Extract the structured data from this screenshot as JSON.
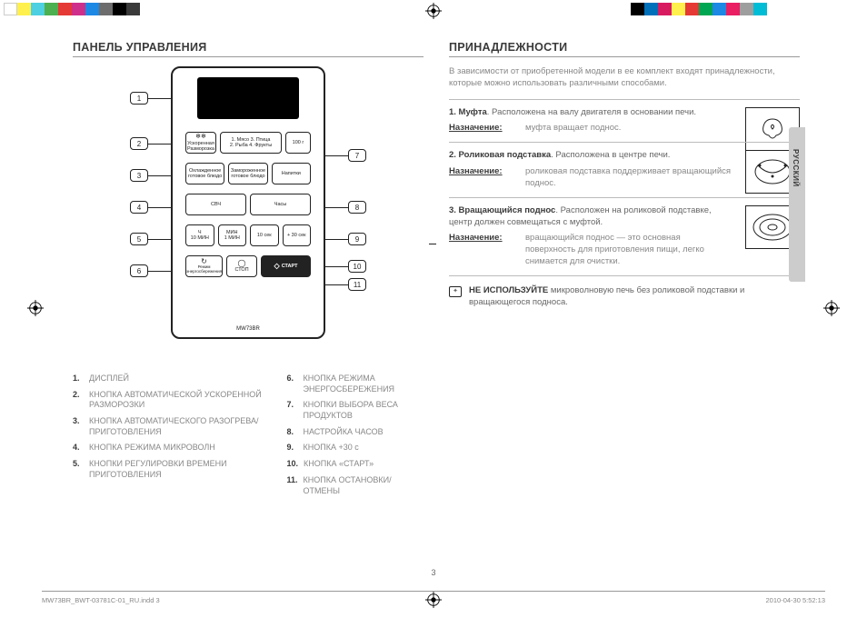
{
  "colorBar1": [
    "#ffffff",
    "#fff04d",
    "#4dd0e1",
    "#4caf50",
    "#e53935",
    "#ce2f8a",
    "#1e88e5",
    "#6d6d6d",
    "#000000",
    "#3a3a3a"
  ],
  "colorBar2": [
    "#000000",
    "#0070ba",
    "#d81b60",
    "#fff04d",
    "#e53935",
    "#00a651",
    "#1e88e5",
    "#e91e63",
    "#9e9e9e",
    "#00bcd4"
  ],
  "left": {
    "title": "ПАНЕЛЬ УПРАВЛЕНИЯ",
    "model": "MW73BR",
    "buttons": {
      "defrost_label": "Ускоренная\nРазморозка",
      "defrost_menu": "1. Мясо  3. Птица\n2. Рыба  4. Фрукты",
      "weight": "100 г",
      "chilled": "Охлажденное\nготовое блюдо",
      "frozen": "Замороженное\nготовое блюдо",
      "drinks": "Напитки",
      "microwave": "СВЧ",
      "clock": "Часы",
      "t10min": "Ч\n10 МИН",
      "t1min": "МИН\n1 МИН",
      "t10sec": "10 сек",
      "t30sec": "+ 30 сек",
      "eco": "Режим\nэнергосбережения",
      "stop": "СТОП",
      "start": "СТАРТ"
    },
    "legend": [
      {
        "n": "1.",
        "t": "ДИСПЛЕЙ"
      },
      {
        "n": "2.",
        "t": "КНОПКА АВТОМАТИЧЕСКОЙ УСКОРЕННОЙ РАЗМОРОЗКИ"
      },
      {
        "n": "3.",
        "t": "КНОПКА АВТОМАТИЧЕСКОГО РАЗОГРЕВА/ПРИГОТОВЛЕНИЯ"
      },
      {
        "n": "4.",
        "t": "КНОПКА РЕЖИМА МИКРОВОЛН"
      },
      {
        "n": "5.",
        "t": "КНОПКИ РЕГУЛИРОВКИ ВРЕМЕНИ ПРИГОТОВЛЕНИЯ"
      },
      {
        "n": "6.",
        "t": "КНОПКА РЕЖИМА ЭНЕРГОСБЕРЕЖЕНИЯ"
      },
      {
        "n": "7.",
        "t": "КНОПКИ ВЫБОРА ВЕСА ПРОДУКТОВ"
      },
      {
        "n": "8.",
        "t": "НАСТРОЙКА ЧАСОВ"
      },
      {
        "n": "9.",
        "t": "КНОПКА +30 с"
      },
      {
        "n": "10.",
        "t": "КНОПКА «СТАРТ»"
      },
      {
        "n": "11.",
        "t": "КНОПКА ОСТАНОВКИ/ОТМЕНЫ"
      }
    ]
  },
  "right": {
    "title": "ПРИНАДЛЕЖНОСТИ",
    "intro": "В зависимости от приобретенной модели в ее комплект входят принадлежности, которые можно использовать различными способами.",
    "purpose_label": "Назначение:",
    "items": [
      {
        "n": "1.",
        "name": "Муфта",
        "desc": ". Расположена на валу двигателя в основании печи.",
        "purpose": "муфта вращает поднос."
      },
      {
        "n": "2.",
        "name": "Роликовая подставка",
        "desc": ". Расположена в центре печи.",
        "purpose": "роликовая подставка поддерживает вращающийся поднос."
      },
      {
        "n": "3.",
        "name": "Вращающийся поднос",
        "desc": ". Расположен на роликовой подставке, центр должен совмещаться с муфтой.",
        "purpose": "вращающийся поднос — это основная поверхность для приготовления пищи, легко снимается для очистки."
      }
    ],
    "note_bold": "НЕ ИСПОЛЬЗУЙТЕ",
    "note_rest": " микроволновую печь без роликовой подставки и вращающегося подноса.",
    "lang": "РУССКИЙ"
  },
  "footer": {
    "file": "MW73BR_BWT-03781C-01_RU.indd   3",
    "date": "2010-04-30     5:52:13",
    "page": "3"
  }
}
